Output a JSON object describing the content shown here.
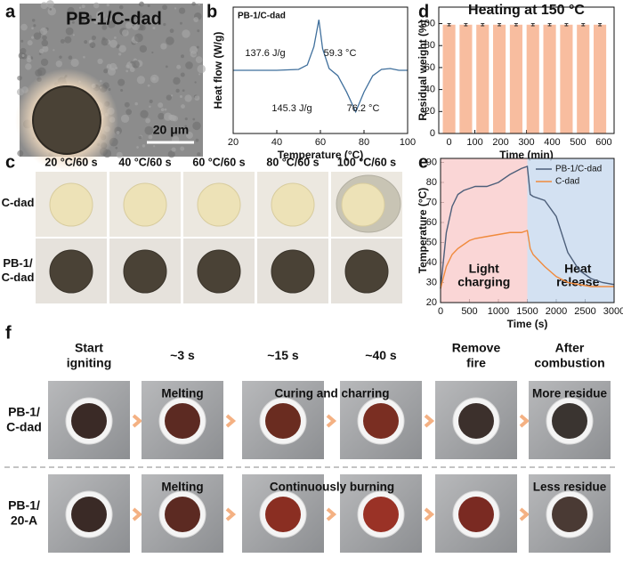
{
  "panel_labels": [
    "a",
    "b",
    "c",
    "d",
    "e",
    "f"
  ],
  "panel_a": {
    "title": "PB-1/C-dad",
    "scale_bar": "20 μm"
  },
  "chart_data": [
    {
      "type": "line",
      "label": "PB-1/C-dad",
      "x": [
        20,
        30,
        40,
        50,
        54,
        57,
        59.3,
        61,
        64,
        68,
        72,
        76.2,
        80,
        84,
        88,
        92,
        96,
        100
      ],
      "series": [
        {
          "color": "#3f6f9c",
          "values": [
            0,
            0,
            0,
            0.05,
            0.3,
            1.3,
            2.8,
            1.2,
            0.1,
            -0.3,
            -1.2,
            -2.3,
            -1.2,
            -0.3,
            0.05,
            0.1,
            0,
            0
          ]
        }
      ],
      "xlim": [
        20,
        100
      ],
      "xticks": [
        20,
        40,
        60,
        80,
        100
      ],
      "ylim": [
        -3.5,
        3.5
      ],
      "xlabel": "Temperature (°C)",
      "ylabel": "Heat flow (W/g)",
      "annotations": [
        "137.6 J/g",
        "59.3 °C",
        "145.3 J/g",
        "76.2 °C"
      ],
      "annotation_color": "#3f6f9c"
    },
    {
      "type": "bar",
      "title": "Heating at 150 °C",
      "title_color": "#5b9bd5",
      "x": [
        0,
        65,
        130,
        195,
        260,
        325,
        390,
        455,
        520,
        585
      ],
      "values": [
        99,
        99,
        99,
        99,
        99,
        99,
        99,
        99,
        99,
        99
      ],
      "errors": [
        1,
        1,
        1,
        1,
        1,
        1,
        1,
        1,
        1,
        1
      ],
      "color": "#f8bd9f",
      "xlim": [
        -40,
        640
      ],
      "xticks": [
        0,
        100,
        200,
        300,
        400,
        500,
        600
      ],
      "ylim": [
        0,
        115
      ],
      "yticks": [
        0,
        20,
        40,
        60,
        80,
        100
      ],
      "xlabel": "Time (min)",
      "ylabel": "Residual weight (%)"
    },
    {
      "type": "line",
      "x": [
        0,
        100,
        200,
        300,
        400,
        500,
        600,
        800,
        1000,
        1200,
        1400,
        1500,
        1550,
        1600,
        1800,
        2000,
        2200,
        2400,
        2600,
        2800,
        3000
      ],
      "series": [
        {
          "name": "PB-1/C-dad",
          "color": "#4d5f7a",
          "values": [
            27,
            55,
            68,
            74,
            76,
            77,
            78,
            78,
            80,
            84,
            87,
            88,
            74,
            73,
            71,
            63,
            45,
            36,
            32,
            30,
            29
          ]
        },
        {
          "name": "C-dad",
          "color": "#f08a3c",
          "values": [
            27,
            38,
            44,
            47,
            49,
            51,
            52,
            53,
            54,
            55,
            55,
            56,
            47,
            44,
            38,
            33,
            30,
            29,
            28,
            28,
            28
          ]
        }
      ],
      "xlim": [
        0,
        3000
      ],
      "xticks": [
        0,
        500,
        1000,
        1500,
        2000,
        2500,
        3000
      ],
      "ylim": [
        20,
        92
      ],
      "yticks": [
        20,
        30,
        40,
        50,
        60,
        70,
        80,
        90
      ],
      "xlabel": "Time (s)",
      "ylabel": "Temperature (°C)",
      "legend": "upper right",
      "regions": [
        {
          "label": [
            "Light",
            "charging"
          ],
          "from": 0,
          "to": 1500,
          "color": "#f9cccc",
          "label_color": "#8b3a1a"
        },
        {
          "label": [
            "Heat",
            "release"
          ],
          "from": 1500,
          "to": 3000,
          "color": "#c8d9ef",
          "label_color": "#6c8cc0"
        }
      ]
    }
  ],
  "panel_c": {
    "columns": [
      "20 °C/60 s",
      "40 °C/60 s",
      "60 °C/60 s",
      "80 °C/60 s",
      "100 °C/60 s"
    ],
    "column_colors": [
      "#f6d3be",
      "#f3bf9f",
      "#eea070",
      "#d9782e",
      "#c4591d"
    ],
    "rows": [
      [
        "C-dad"
      ],
      [
        "PB-1/",
        "C-dad"
      ]
    ]
  },
  "panel_f": {
    "columns": [
      [
        "Start",
        "igniting"
      ],
      [
        "~3 s"
      ],
      [
        "~15 s"
      ],
      [
        "~40 s"
      ],
      [
        "Remove",
        "fire"
      ],
      [
        "After",
        "combustion"
      ]
    ],
    "rows": [
      [
        "PB-1/",
        "C-dad"
      ],
      [
        "PB-1/",
        "20-A"
      ]
    ],
    "note_color": "#4a7a4a",
    "notes": [
      {
        "text": "Melting",
        "row": 0,
        "columns": [
          1
        ]
      },
      {
        "text": "Curing and charring",
        "row": 0,
        "columns": [
          2,
          3
        ]
      },
      {
        "text": "More residue",
        "row": 0,
        "columns": [
          5
        ]
      },
      {
        "text": "Melting",
        "row": 1,
        "columns": [
          1
        ]
      },
      {
        "text": "Continuously burning",
        "row": 1,
        "columns": [
          2,
          3
        ]
      },
      {
        "text": "Less residue",
        "row": 1,
        "columns": [
          5
        ]
      }
    ]
  }
}
